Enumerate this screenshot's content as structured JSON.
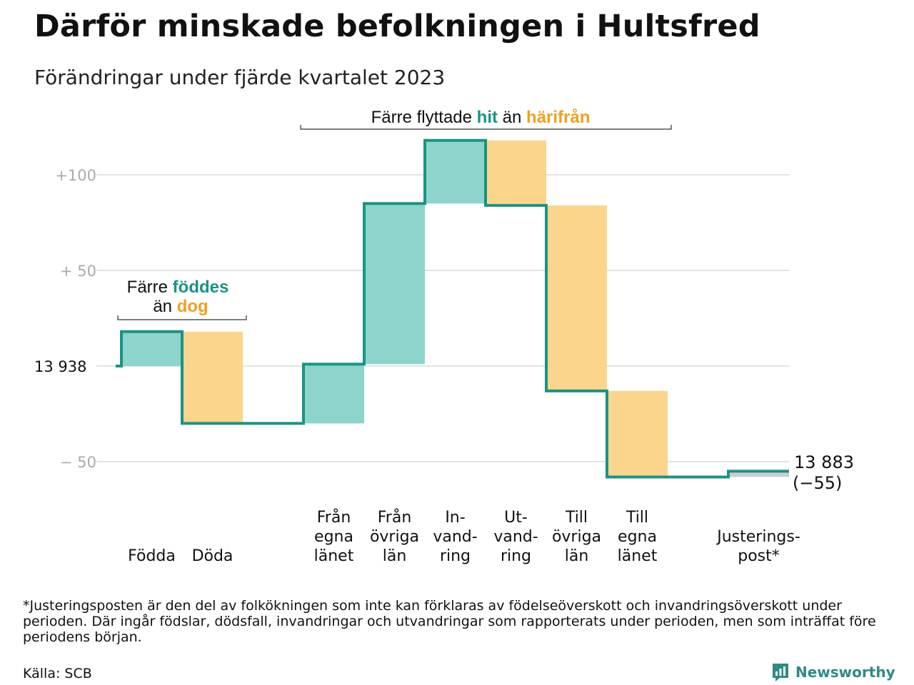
{
  "header": {
    "title": "Därför minskade befolkningen i Hultsfred",
    "subtitle": "Förändringar under fjärde kvartalet 2023"
  },
  "colors": {
    "inflow": "#8dd5cc",
    "outflow": "#fbd58c",
    "line": "#1a9384",
    "adjustment": "#cccccc",
    "teal_text": "#1a9384",
    "orange_text": "#f0a020",
    "gridline": "#e3e3e3",
    "axis_label": "#aaaaaa"
  },
  "chart_data": {
    "type": "waterfall",
    "start_value": 13938,
    "end_value": 13883,
    "net_change": -55,
    "y_range": [
      -62,
      120
    ],
    "y_ticks": [
      {
        "value": 100,
        "label": "+100"
      },
      {
        "value": 50,
        "label": "+  50"
      },
      {
        "value": 0,
        "label": "13  938"
      },
      {
        "value": -50,
        "label": "−  50"
      }
    ],
    "steps": [
      {
        "label": [
          "Födda"
        ],
        "value": 18,
        "kind": "inflow"
      },
      {
        "label": [
          "Döda"
        ],
        "value": -48,
        "kind": "outflow"
      },
      {
        "label": [
          "Från",
          "egna",
          "länet"
        ],
        "value": 31,
        "kind": "inflow"
      },
      {
        "label": [
          "Från",
          "övriga",
          "län"
        ],
        "value": 84,
        "kind": "inflow"
      },
      {
        "label": [
          "In-",
          "vand-",
          "ring"
        ],
        "value": 33,
        "kind": "inflow"
      },
      {
        "label": [
          "Ut-",
          "vand-",
          "ring"
        ],
        "value": -34,
        "kind": "outflow"
      },
      {
        "label": [
          "Till",
          "övriga",
          "län"
        ],
        "value": -97,
        "kind": "outflow"
      },
      {
        "label": [
          "Till",
          "egna",
          "länet"
        ],
        "value": -45,
        "kind": "outflow"
      },
      {
        "label": [
          "Justerings-",
          "post*"
        ],
        "value": 3,
        "kind": "adjustment"
      }
    ],
    "end_label": "13 883",
    "end_change_label": "(−55)",
    "annotations": {
      "births": {
        "prefix": "Färre ",
        "word1": "föddes",
        "middle": "än ",
        "word2": "dog"
      },
      "migration": {
        "prefix": "Färre flyttade ",
        "word1": "hit",
        "middle": " än ",
        "word2": "härifrån"
      }
    }
  },
  "footer": {
    "footnote": "*Justeringsposten är den del av folkökningen som inte kan förklaras av födelseöverskott och invandringsöverskott under perioden. Där ingår födslar, dödsfall, invandringar och utvandringar som rapporterats under perioden, men som inträffat före periodens början.",
    "source": "Källa: SCB",
    "brand": "Newsworthy"
  }
}
